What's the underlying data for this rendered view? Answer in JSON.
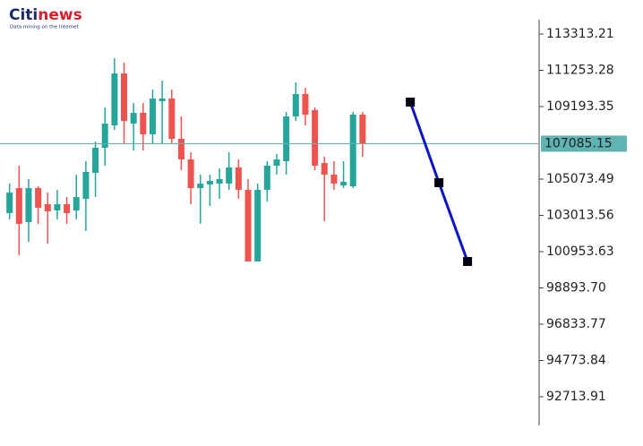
{
  "logo": {
    "brand": "Citi",
    "brand2": "news",
    "tagline": "Data mining on the Internet"
  },
  "chart_data": {
    "type": "candlestick",
    "x": [
      0,
      1,
      2,
      3,
      4,
      5,
      6,
      7,
      8,
      9,
      10,
      11,
      12,
      13,
      14,
      15,
      16,
      17,
      18,
      19,
      20,
      21,
      22,
      23,
      24,
      25,
      26,
      27,
      28,
      29,
      30,
      31,
      32,
      33,
      34,
      35,
      36,
      37
    ],
    "open": [
      103141,
      104565,
      102633,
      104565,
      103650,
      103294,
      103650,
      103294,
      103955,
      105430,
      106854,
      108126,
      111075,
      108227,
      108837,
      107617,
      109499,
      109651,
      107363,
      106193,
      104565,
      104769,
      104820,
      104820,
      105735,
      104464,
      100395,
      104464,
      105837,
      106091,
      108634,
      109906,
      108990,
      105989,
      105328,
      104718,
      104667,
      108736
    ],
    "high": [
      104820,
      105837,
      105074,
      104667,
      104311,
      104464,
      104057,
      105328,
      106091,
      107210,
      109143,
      111940,
      111686,
      109397,
      109397,
      110160,
      110669,
      110160,
      108634,
      106600,
      105328,
      105328,
      105684,
      106600,
      106193,
      105074,
      104820,
      106091,
      106498,
      108888,
      110567,
      110262,
      109143,
      106346,
      106091,
      106091,
      108888,
      108888
    ],
    "low": [
      102785,
      100751,
      101514,
      102531,
      101412,
      102785,
      102531,
      102785,
      102124,
      104057,
      105837,
      107871,
      107108,
      106702,
      106702,
      107108,
      107108,
      107108,
      105582,
      103650,
      102540,
      103548,
      103955,
      104464,
      103955,
      100395,
      100395,
      103802,
      105328,
      105328,
      108380,
      108126,
      105582,
      102684,
      104464,
      104565,
      104565,
      106346
    ],
    "close": [
      104311,
      102531,
      104565,
      103446,
      103243,
      103650,
      103141,
      104057,
      105481,
      106854,
      108227,
      111075,
      108380,
      108837,
      107617,
      109651,
      109651,
      107363,
      106193,
      104565,
      104820,
      104972,
      105074,
      105735,
      104464,
      100395,
      104464,
      105837,
      106193,
      108634,
      109906,
      108736,
      105837,
      105328,
      104820,
      104921,
      108736,
      107108
    ],
    "up_color": "#26a69a",
    "down_color": "#ef5350",
    "xlim": [
      -1,
      55.5
    ],
    "ylim": [
      91086,
      114127
    ],
    "yticks": [
      113313.21,
      111253.28,
      109193.35,
      105073.49,
      103013.56,
      100953.63,
      {
        "value": 98893.7,
        "label": "98893.70"
      },
      96833.77,
      94773.84,
      92713.91
    ],
    "price_line": {
      "value": 107085.15,
      "color": "#5fb3b3"
    },
    "forecast": {
      "x": [
        42,
        45,
        48
      ],
      "values": [
        109448,
        104871,
        100395
      ],
      "color": "#0a14c8",
      "marker_color": "#000010"
    }
  }
}
